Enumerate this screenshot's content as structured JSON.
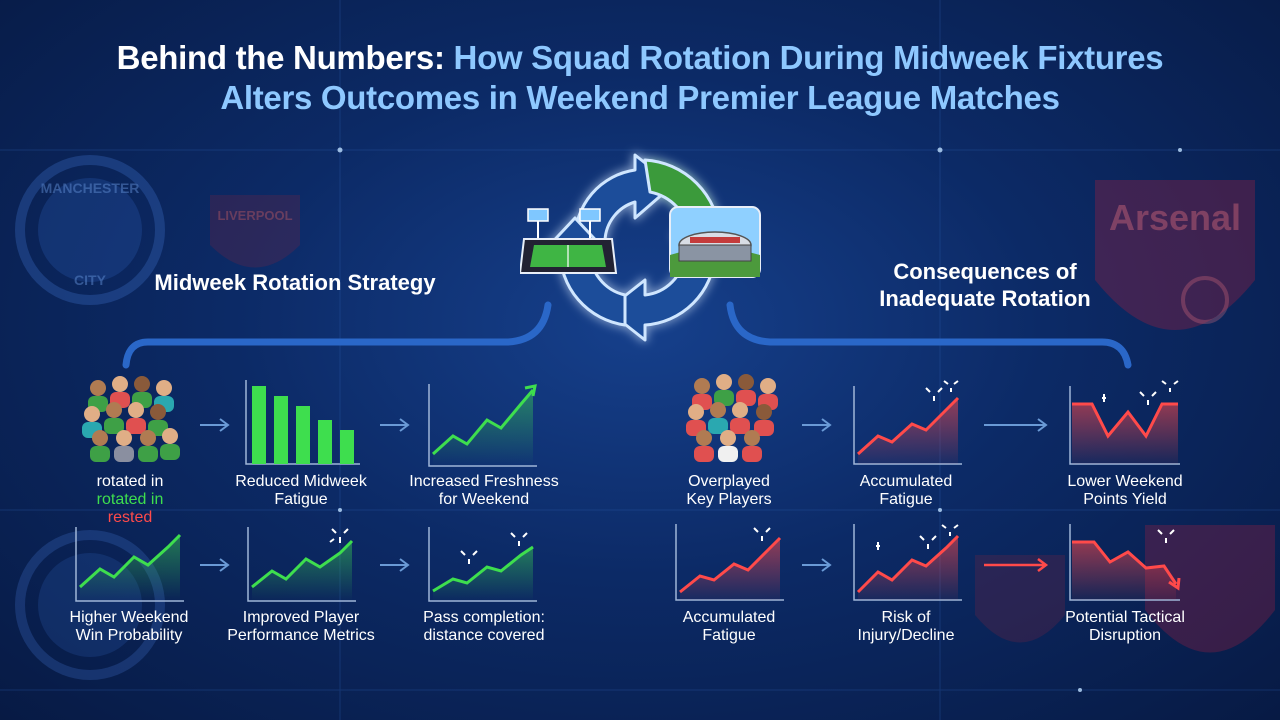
{
  "title": {
    "part1": "Behind the Numbers:",
    "part2": "How Squad Rotation During Midweek Fixtures",
    "line2": "Alters Outcomes in Weekend Premier League Matches"
  },
  "left": {
    "heading": "Midweek Rotation Strategy",
    "row1": [
      {
        "line1": "rotated in",
        "line2": "rotated in",
        "line3": "rested"
      },
      {
        "line1": "Reduced Midweek",
        "line2": "Fatigue"
      },
      {
        "line1": "Increased Freshness",
        "line2": "for Weekend"
      }
    ],
    "row2": [
      {
        "line1": "Higher Weekend",
        "line2": "Win Probability"
      },
      {
        "line1": "Improved Player",
        "line2": "Performance Metrics"
      },
      {
        "line1": "Pass completion:",
        "line2": "distance covered"
      }
    ]
  },
  "right": {
    "heading_line1": "Consequences of",
    "heading_line2": "Inadequate Rotation",
    "row1": [
      {
        "line1": "Overplayed",
        "line2": "Key Players"
      },
      {
        "line1": "Accumulated",
        "line2": "Fatigue"
      },
      {
        "line1": "Lower Weekend",
        "line2": "Points Yield"
      }
    ],
    "row2": [
      {
        "line1": "Accumulated",
        "line2": "Fatigue"
      },
      {
        "line1": "Risk of",
        "line2": "Injury/Decline"
      },
      {
        "line1": "Potential Tactical",
        "line2": "Disruption"
      }
    ]
  },
  "watermarks": {
    "city_top": "MANCHESTER",
    "city_bottom": "CITY",
    "liverpool": "LIVERPOOL",
    "arsenal": "Arsenal"
  },
  "colors": {
    "positive": "#3ede4e",
    "negative": "#ff4a4a",
    "title_accent": "#8ec8ff",
    "arrow": "#6a9ad6"
  }
}
